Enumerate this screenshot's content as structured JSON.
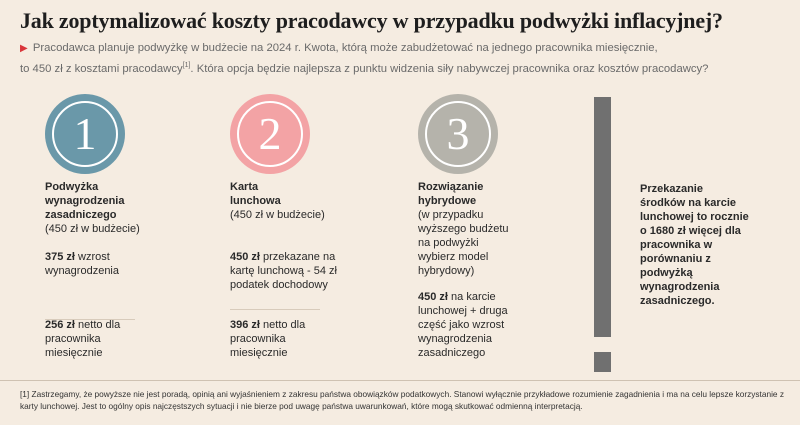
{
  "title": "Jak zoptymalizować koszty pracodawcy w przypadku podwyżki inflacyjnej?",
  "subtitle": {
    "line1": "Pracodawca planuje podwyżkę w budżecie na 2024 r. Kwota, którą może zabudżetować na jednego pracownika miesięcznie,",
    "line2_pre": "to 450 zł z kosztami pracodawcy",
    "ref": "[1]",
    "line2_post": ". Która opcja będzie najlepsza z punktu widzenia siły nabywczej pracownika oraz kosztów pracodawcy?"
  },
  "colors": {
    "option1": "#6a98a9",
    "option2": "#f3a3a5",
    "option3": "#b5b3ab",
    "accent_triangle": "#d9353a",
    "exclamation": "#707070",
    "background": "#f5ece1"
  },
  "options": [
    {
      "number": "1",
      "name_bold": "Podwyżka wynagrodzenia zasadniczego",
      "name_sub": "(450 zł w budżecie)",
      "b1_bold": "375 zł",
      "b1_rest": "wzrost wynagrodzenia",
      "b2_bold": "256 zł",
      "b2_rest": "netto dla pracownika miesięcznie"
    },
    {
      "number": "2",
      "name_bold": "Karta lunchowa",
      "name_sub": "(450 zł w budżecie)",
      "b1_bold": "450 zł",
      "b1_rest": "przekazane na kartę lunchową - 54 zł podatek dochodowy",
      "b2_bold": "396 zł",
      "b2_rest": "netto dla pracownika miesięcznie"
    },
    {
      "number": "3",
      "name_bold": "Rozwiązanie hybrydowe",
      "name_sub": "(w przypadku wyższego budżetu na podwyżki wybierz model hybrydowy)",
      "b1_bold": "450 zł",
      "b1_rest": "na karcie lunchowej + druga część jako wzrost wynagrodzenia zasadniczego"
    }
  ],
  "conclusion": "Przekazanie środków na karcie lunchowej to rocznie o 1680 zł więcej dla pracownika w porównaniu z podwyżką wynagrodzenia zasadniczego.",
  "footnote": "[1] Zastrzegamy, że powyższe nie jest poradą, opinią ani wyjaśnieniem z zakresu państwa obowiązków podatkowych. Stanowi wyłącznie przykładowe rozumienie zagadnienia i ma na celu lepsze korzystanie z karty lunchowej. Jest to ogólny opis najczęstszych sytuacji i nie bierze pod uwagę państwa uwarunkowań, które mogą skutkować odmienną interpretacją."
}
